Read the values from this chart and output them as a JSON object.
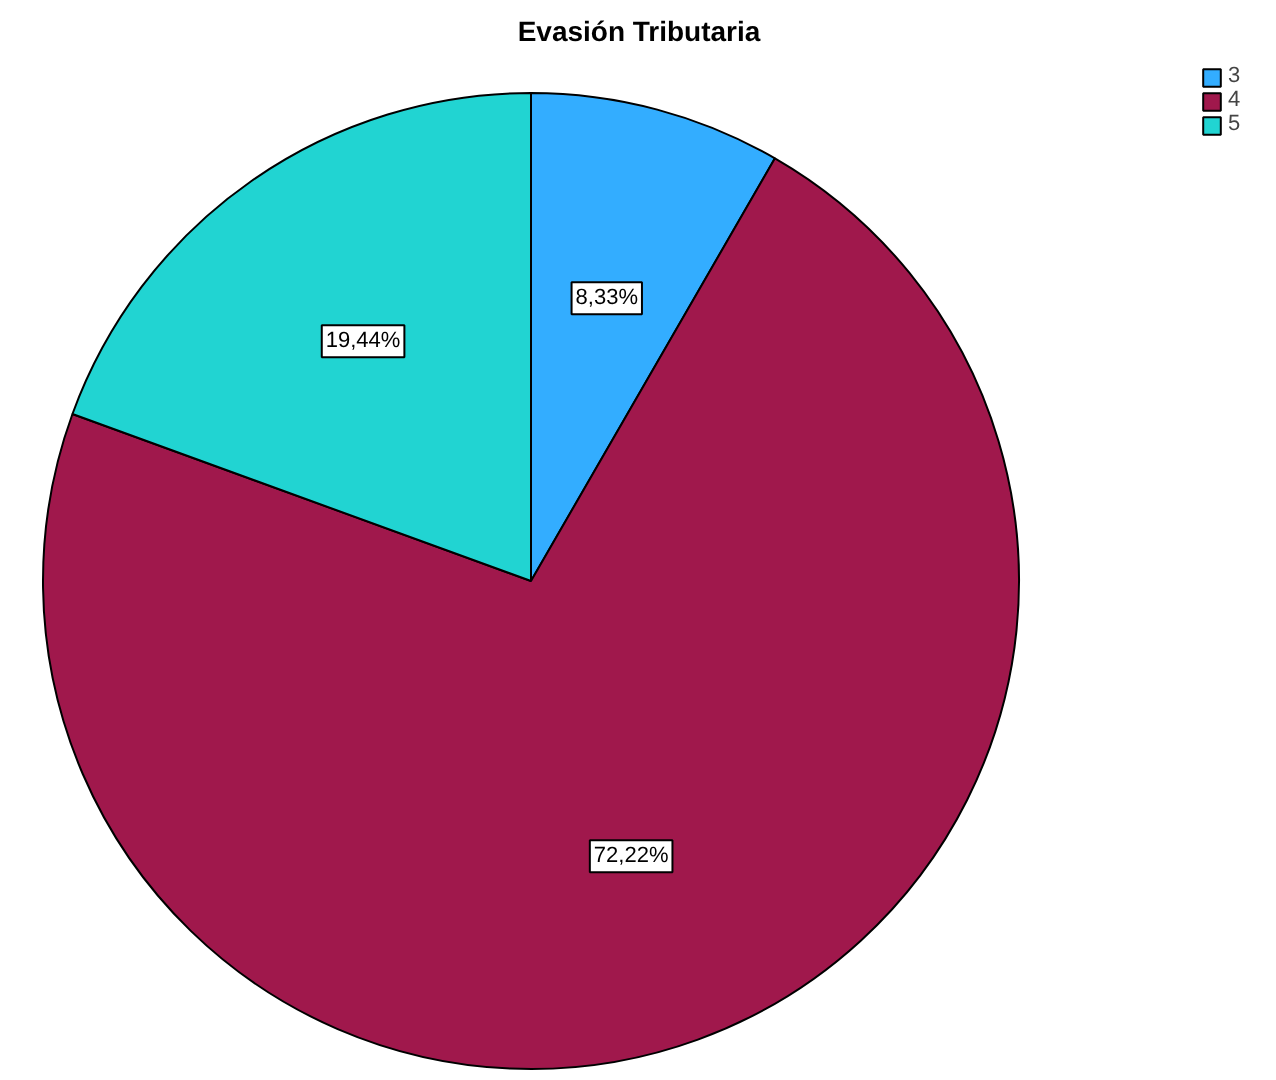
{
  "chart_data": {
    "type": "pie",
    "title": "Evasión Tributaria",
    "categories": [
      "3",
      "4",
      "5"
    ],
    "values": [
      8.33,
      72.22,
      19.44
    ],
    "colors": [
      "#33adff",
      "#a0184c",
      "#21d4d2"
    ],
    "value_labels": [
      "8,33%",
      "72,22%",
      "19,44%"
    ],
    "legend": "top right"
  }
}
